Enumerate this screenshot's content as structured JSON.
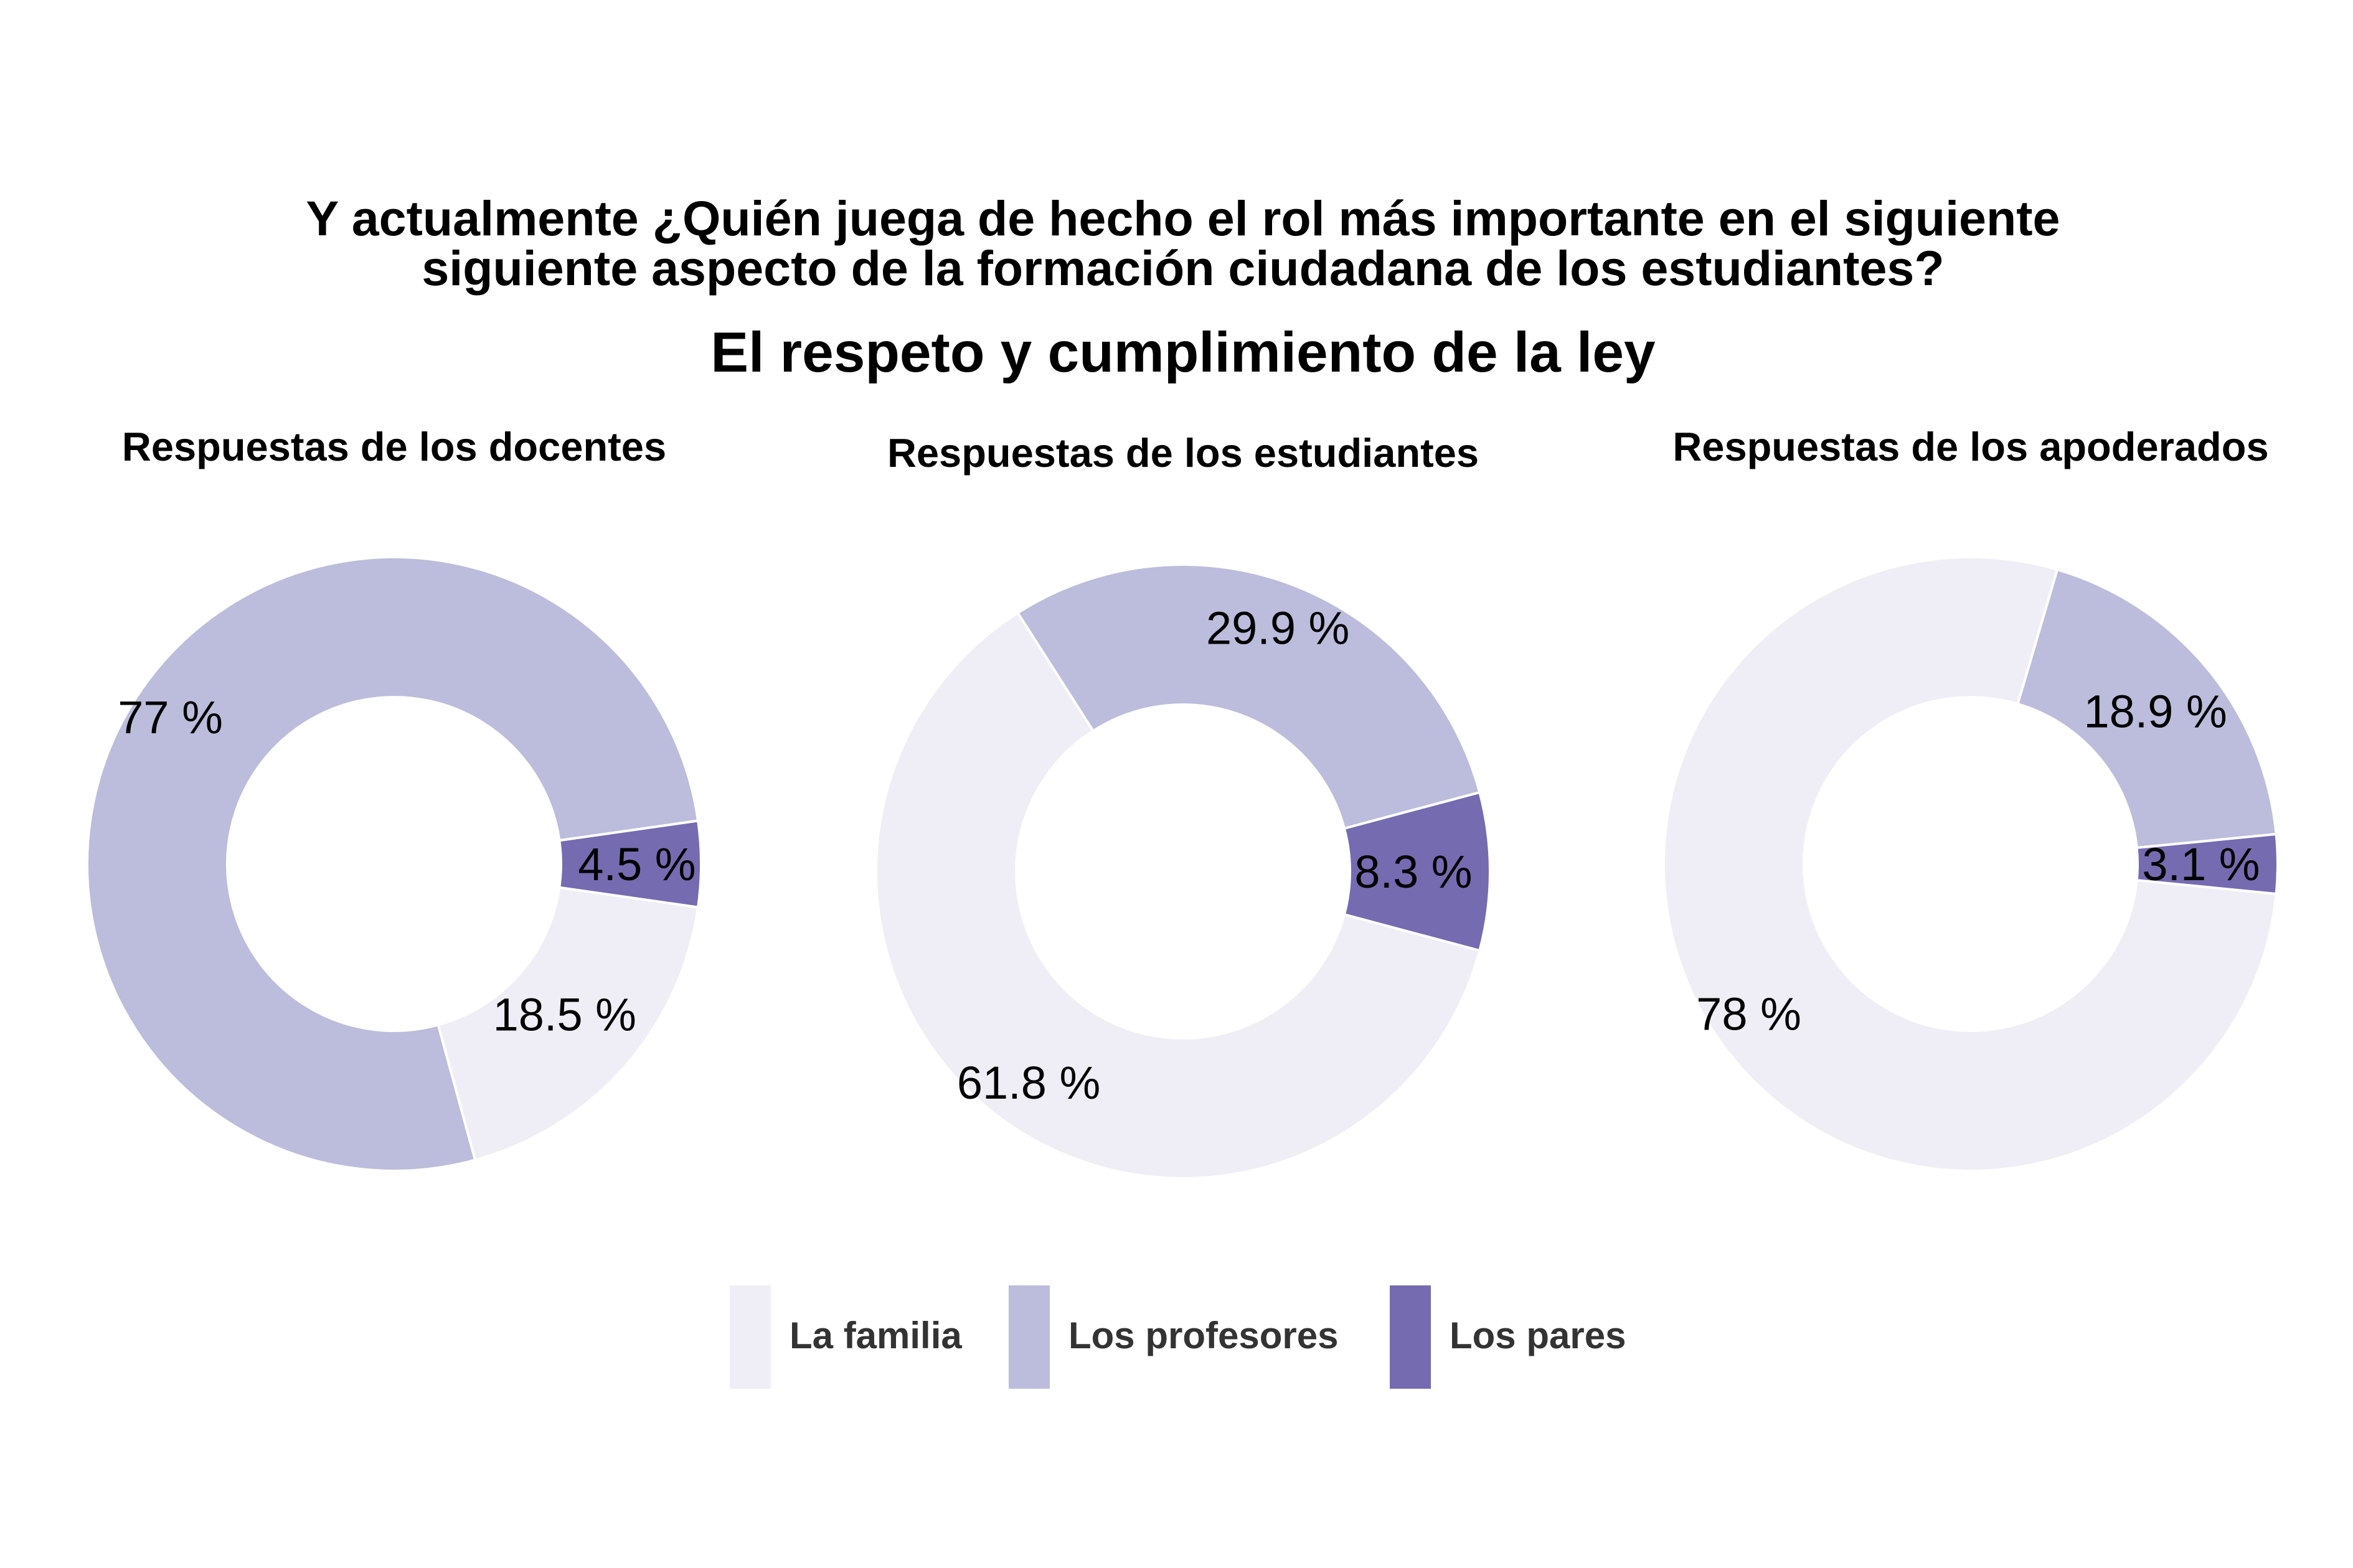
{
  "chart_data": {
    "type": "pie",
    "title_lines": [
      "Y actualmente ¿Quién juega de hecho el rol más importante en el siguiente",
      "siguiente aspecto de la formación ciudadana de los estudiantes?"
    ],
    "subtitle": "El respeto y cumplimiento de la ley",
    "categories": [
      "La familia",
      "Los profesores",
      "Los pares"
    ],
    "colors": {
      "La familia": "#efedf5",
      "Los profesores": "#bcbddc",
      "Los pares": "#756bb1"
    },
    "legend_position": "bottom",
    "panels": [
      {
        "title": "Respuestas de los docentes",
        "values": [
          18.5,
          77,
          4.5
        ],
        "labels": [
          "18.5 %",
          "77 %",
          "4.5 %"
        ]
      },
      {
        "title": "Respuestas de los estudiantes",
        "values": [
          61.8,
          29.9,
          8.3
        ],
        "labels": [
          "61.8 %",
          "29.9 %",
          "8.3 %"
        ]
      },
      {
        "title": "Respuestas de los apoderados",
        "values": [
          78,
          18.9,
          3.1
        ],
        "labels": [
          "78 %",
          "18.9 %",
          "3.1 %"
        ]
      }
    ]
  }
}
